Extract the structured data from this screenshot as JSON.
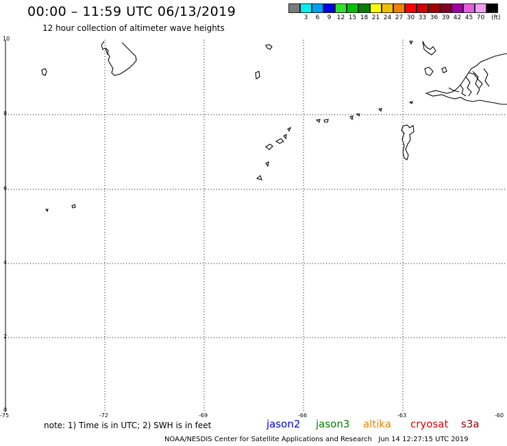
{
  "header": {
    "title": "00:00 – 11:59 UTC 06/13/2019",
    "subtitle": "12 hour collection of altimeter wave heights"
  },
  "scale": {
    "colors": [
      "#7a7a7a",
      "#00f0f0",
      "#00a0f0",
      "#0000e0",
      "#30e030",
      "#00c000",
      "#008000",
      "#ffff00",
      "#f0c000",
      "#f08000",
      "#ff0000",
      "#d00000",
      "#a00000",
      "#800020",
      "#a000a0",
      "#e060e0",
      "#f0a0f0",
      "#000000"
    ],
    "labels": [
      "3",
      "6",
      "9",
      "12",
      "15",
      "18",
      "21",
      "24",
      "27",
      "30",
      "33",
      "36",
      "39",
      "42",
      "45",
      "70"
    ],
    "unit": "(ft)"
  },
  "axes": {
    "y_labels": [
      "10",
      "8",
      "6",
      "4",
      "2",
      "0"
    ],
    "x_labels": [
      "-75",
      "-72",
      "-69",
      "-66",
      "-63",
      "-60"
    ]
  },
  "note": "note: 1) Time is in UTC; 2) SWH is in feet",
  "satellites": [
    {
      "name": "jason2",
      "color": "#0000e0"
    },
    {
      "name": "jason3",
      "color": "#008000"
    },
    {
      "name": "altika",
      "color": "#f08000"
    },
    {
      "name": "cryosat",
      "color": "#e00000"
    },
    {
      "name": "s3a",
      "color": "#a00000"
    }
  ],
  "footer": "NOAA/NESDIS Center for Satellite Applications and Research   Jun 14 12:27:15 UTC 2019"
}
